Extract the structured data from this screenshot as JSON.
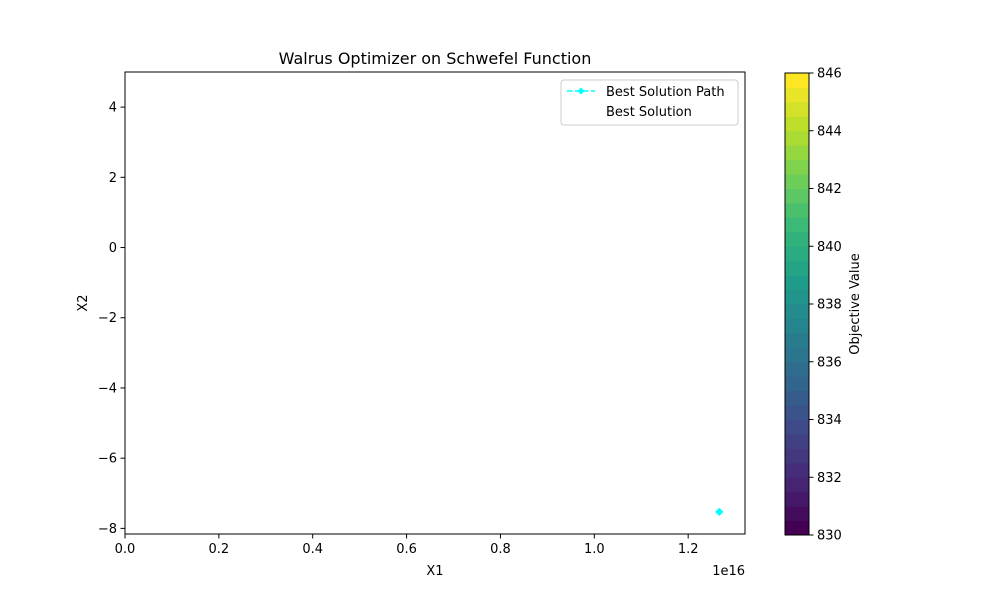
{
  "chart_data": {
    "type": "scatter",
    "title": "Walrus Optimizer on Schwefel Function",
    "xlabel": "X1",
    "ylabel": "X2",
    "x_offset_label": "1e16",
    "xlim": [
      0,
      1.3211
    ],
    "ylim": [
      -8.16,
      5.0
    ],
    "x_ticks": [
      0.0,
      0.2,
      0.4,
      0.6,
      0.8,
      1.0,
      1.2
    ],
    "x_tick_labels": [
      "0.0",
      "0.2",
      "0.4",
      "0.6",
      "0.8",
      "1.0",
      "1.2"
    ],
    "y_ticks": [
      4,
      2,
      0,
      -2,
      -4,
      -6,
      -8
    ],
    "y_tick_labels": [
      "4",
      "2",
      "0",
      "−2",
      "−4",
      "−6",
      "−8"
    ],
    "grid": false,
    "legend_placement": "upper right",
    "series": [
      {
        "name": "Best Solution Path",
        "style": "dashed line with diamond markers",
        "color": "#00ffff",
        "x": [
          1.2663
        ],
        "y": [
          -7.53
        ]
      },
      {
        "name": "Best Solution",
        "style": "marker (not visible)",
        "color": "#ff0000",
        "x": [],
        "y": []
      }
    ],
    "colorbar": {
      "label": "Objective Value",
      "colormap": "viridis",
      "min": 830,
      "max": 846,
      "levels": 32,
      "ticks": [
        830,
        832,
        834,
        836,
        838,
        840,
        842,
        844,
        846
      ],
      "tick_labels": [
        "830",
        "832",
        "834",
        "836",
        "838",
        "840",
        "842",
        "844",
        "846"
      ]
    }
  }
}
